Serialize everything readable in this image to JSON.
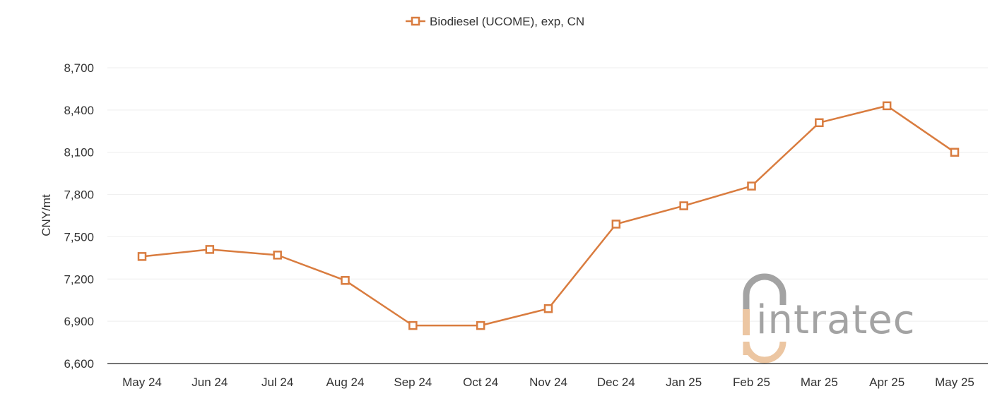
{
  "chart_data": {
    "type": "line",
    "title": "",
    "xlabel": "",
    "ylabel": "CNY/mt",
    "categories": [
      "May 24",
      "Jun 24",
      "Jul 24",
      "Aug 24",
      "Sep 24",
      "Oct 24",
      "Nov 24",
      "Dec 24",
      "Jan 25",
      "Feb 25",
      "Mar 25",
      "Apr 25",
      "May 25"
    ],
    "series": [
      {
        "name": "Biodiesel (UCOME), exp, CN",
        "color": "#d97c3f",
        "marker": "hollow-square",
        "values": [
          7360,
          7410,
          7370,
          7190,
          6870,
          6870,
          6990,
          7590,
          7720,
          7860,
          8310,
          8430,
          8100
        ]
      }
    ],
    "ylim": [
      6600,
      8700
    ],
    "yticks": [
      6600,
      6900,
      7200,
      7500,
      7800,
      8100,
      8400,
      8700
    ],
    "ytick_labels": [
      "6,600",
      "6,900",
      "7,200",
      "7,500",
      "7,800",
      "8,100",
      "8,400",
      "8,700"
    ],
    "grid": "horizontal",
    "legend_position": "top-center"
  },
  "watermark": {
    "text": "intratec",
    "icon": "intratec-logo-icon",
    "colors": {
      "gray": "#a3a3a3",
      "peach": "#ecc6a2"
    }
  }
}
